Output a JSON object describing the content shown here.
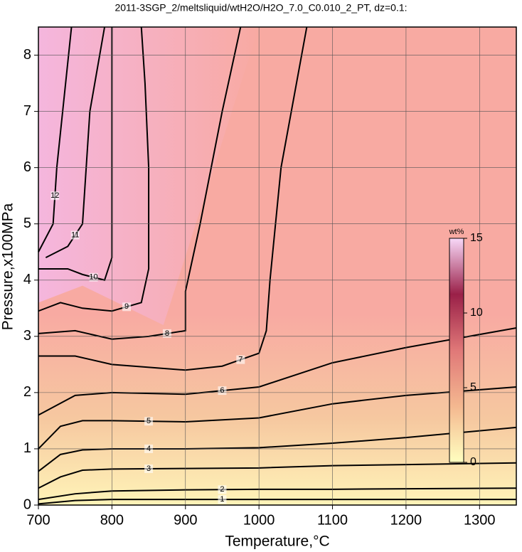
{
  "chart_data": {
    "type": "contour",
    "title": "2011-3SGP_2/meltsliquid/wtH2O/H2O_7.0_C0.010_2_PT, dz=0.1:",
    "x_label": "Temperature,°C",
    "y_label": "Pressure,x100MPa",
    "xlim": [
      700,
      1350
    ],
    "ylim": [
      0,
      8.5
    ],
    "xticks": [
      700,
      800,
      900,
      1000,
      1100,
      1200,
      1300
    ],
    "yticks": [
      0,
      1,
      2,
      3,
      4,
      5,
      6,
      7,
      8
    ],
    "grid": true,
    "contours": [
      {
        "level": 1,
        "x": [
          700,
          750,
          800,
          900,
          1000,
          1100,
          1200,
          1350
        ],
        "y": [
          0.02,
          0.08,
          0.1,
          0.1,
          0.1,
          0.1,
          0.1,
          0.1
        ]
      },
      {
        "level": 2,
        "x": [
          700,
          750,
          800,
          900,
          1000,
          1100,
          1200,
          1350
        ],
        "y": [
          0.1,
          0.2,
          0.25,
          0.27,
          0.28,
          0.28,
          0.29,
          0.3
        ]
      },
      {
        "level": 3,
        "x": [
          700,
          730,
          760,
          800,
          900,
          1000,
          1100,
          1200,
          1350
        ],
        "y": [
          0.3,
          0.5,
          0.62,
          0.64,
          0.65,
          0.66,
          0.7,
          0.72,
          0.75
        ]
      },
      {
        "level": 4,
        "x": [
          700,
          730,
          760,
          800,
          900,
          1000,
          1100,
          1200,
          1350
        ],
        "y": [
          0.6,
          0.9,
          0.98,
          1.0,
          1.0,
          1.02,
          1.1,
          1.2,
          1.38
        ]
      },
      {
        "level": 5,
        "x": [
          700,
          730,
          760,
          800,
          900,
          1000,
          1100,
          1200,
          1350
        ],
        "y": [
          1.0,
          1.4,
          1.5,
          1.5,
          1.48,
          1.55,
          1.8,
          1.95,
          2.1
        ]
      },
      {
        "level": 6,
        "x": [
          700,
          750,
          800,
          900,
          1000,
          1100,
          1200,
          1350
        ],
        "y": [
          1.6,
          1.95,
          2.0,
          1.97,
          2.1,
          2.53,
          2.8,
          3.15
        ]
      },
      {
        "level": 7,
        "x": [
          700,
          750,
          800,
          900,
          950,
          1000,
          1010,
          1015,
          1030,
          1065
        ],
        "y": [
          2.65,
          2.65,
          2.5,
          2.4,
          2.47,
          2.7,
          3.1,
          4.0,
          6.0,
          8.5
        ]
      },
      {
        "level": 8,
        "x": [
          700,
          750,
          800,
          850,
          900,
          900,
          920,
          950,
          975
        ],
        "y": [
          3.05,
          3.1,
          2.95,
          3.0,
          3.1,
          3.8,
          5.0,
          7.0,
          8.5
        ]
      },
      {
        "level": 9,
        "x": [
          700,
          730,
          760,
          800,
          840,
          850,
          850,
          845,
          840
        ],
        "y": [
          3.45,
          3.6,
          3.5,
          3.45,
          3.6,
          4.2,
          6.0,
          7.5,
          8.5
        ]
      },
      {
        "level": 10,
        "x": [
          700,
          740,
          760,
          790,
          800,
          800,
          800
        ],
        "y": [
          4.2,
          4.2,
          4.1,
          4.0,
          4.4,
          6.0,
          8.5
        ]
      },
      {
        "level": 11,
        "x": [
          710,
          740,
          760,
          770,
          790
        ],
        "y": [
          4.4,
          4.6,
          5.0,
          7.0,
          8.5
        ]
      },
      {
        "level": 12,
        "x": [
          700,
          720,
          725,
          745
        ],
        "y": [
          4.5,
          5.0,
          6.0,
          8.5
        ]
      }
    ],
    "colorbar": {
      "label": "wt%",
      "lim": [
        0,
        15
      ],
      "ticks": [
        0,
        5,
        10,
        15
      ],
      "colors": [
        "#ffffc0",
        "#f4b890",
        "#e07878",
        "#9a2048",
        "#f8d8f8"
      ]
    }
  }
}
